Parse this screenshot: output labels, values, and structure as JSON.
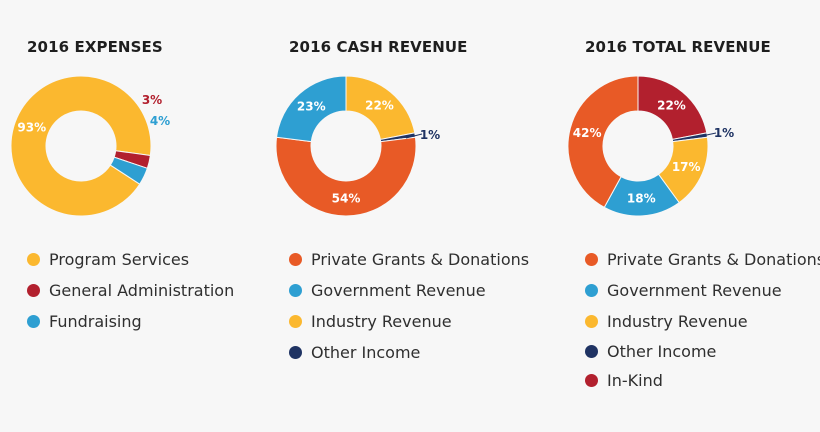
{
  "colors": {
    "yellow": "#fbb82f",
    "red": "#b2202e",
    "blue": "#2e9fd2",
    "orange": "#e85a26",
    "navy": "#1f3363"
  },
  "chart_data": [
    {
      "type": "pie",
      "title": "2016 EXPENSES",
      "slices": [
        {
          "label": "Program Services",
          "value": 93,
          "text": "93%",
          "color": "#fbb82f"
        },
        {
          "label": "General Administration",
          "value": 3,
          "text": "3%",
          "color": "#b2202e"
        },
        {
          "label": "Fundraising",
          "value": 4,
          "text": "4%",
          "color": "#2e9fd2"
        }
      ]
    },
    {
      "type": "pie",
      "title": "2016 CASH REVENUE",
      "slices": [
        {
          "label": "Private Grants & Donations",
          "value": 54,
          "text": "54%",
          "color": "#e85a26"
        },
        {
          "label": "Government Revenue",
          "value": 23,
          "text": "23%",
          "color": "#2e9fd2"
        },
        {
          "label": "Industry Revenue",
          "value": 22,
          "text": "22%",
          "color": "#fbb82f"
        },
        {
          "label": "Other Income",
          "value": 1,
          "text": "1%",
          "color": "#1f3363"
        }
      ]
    },
    {
      "type": "pie",
      "title": "2016 TOTAL REVENUE",
      "slices": [
        {
          "label": "Private Grants & Donations",
          "value": 42,
          "text": "42%",
          "color": "#e85a26"
        },
        {
          "label": "Government Revenue",
          "value": 18,
          "text": "18%",
          "color": "#2e9fd2"
        },
        {
          "label": "Industry Revenue",
          "value": 17,
          "text": "17%",
          "color": "#fbb82f"
        },
        {
          "label": "Other Income",
          "value": 1,
          "text": "1%",
          "color": "#1f3363"
        },
        {
          "label": "In-Kind",
          "value": 22,
          "text": "22%",
          "color": "#b2202e"
        }
      ]
    }
  ]
}
